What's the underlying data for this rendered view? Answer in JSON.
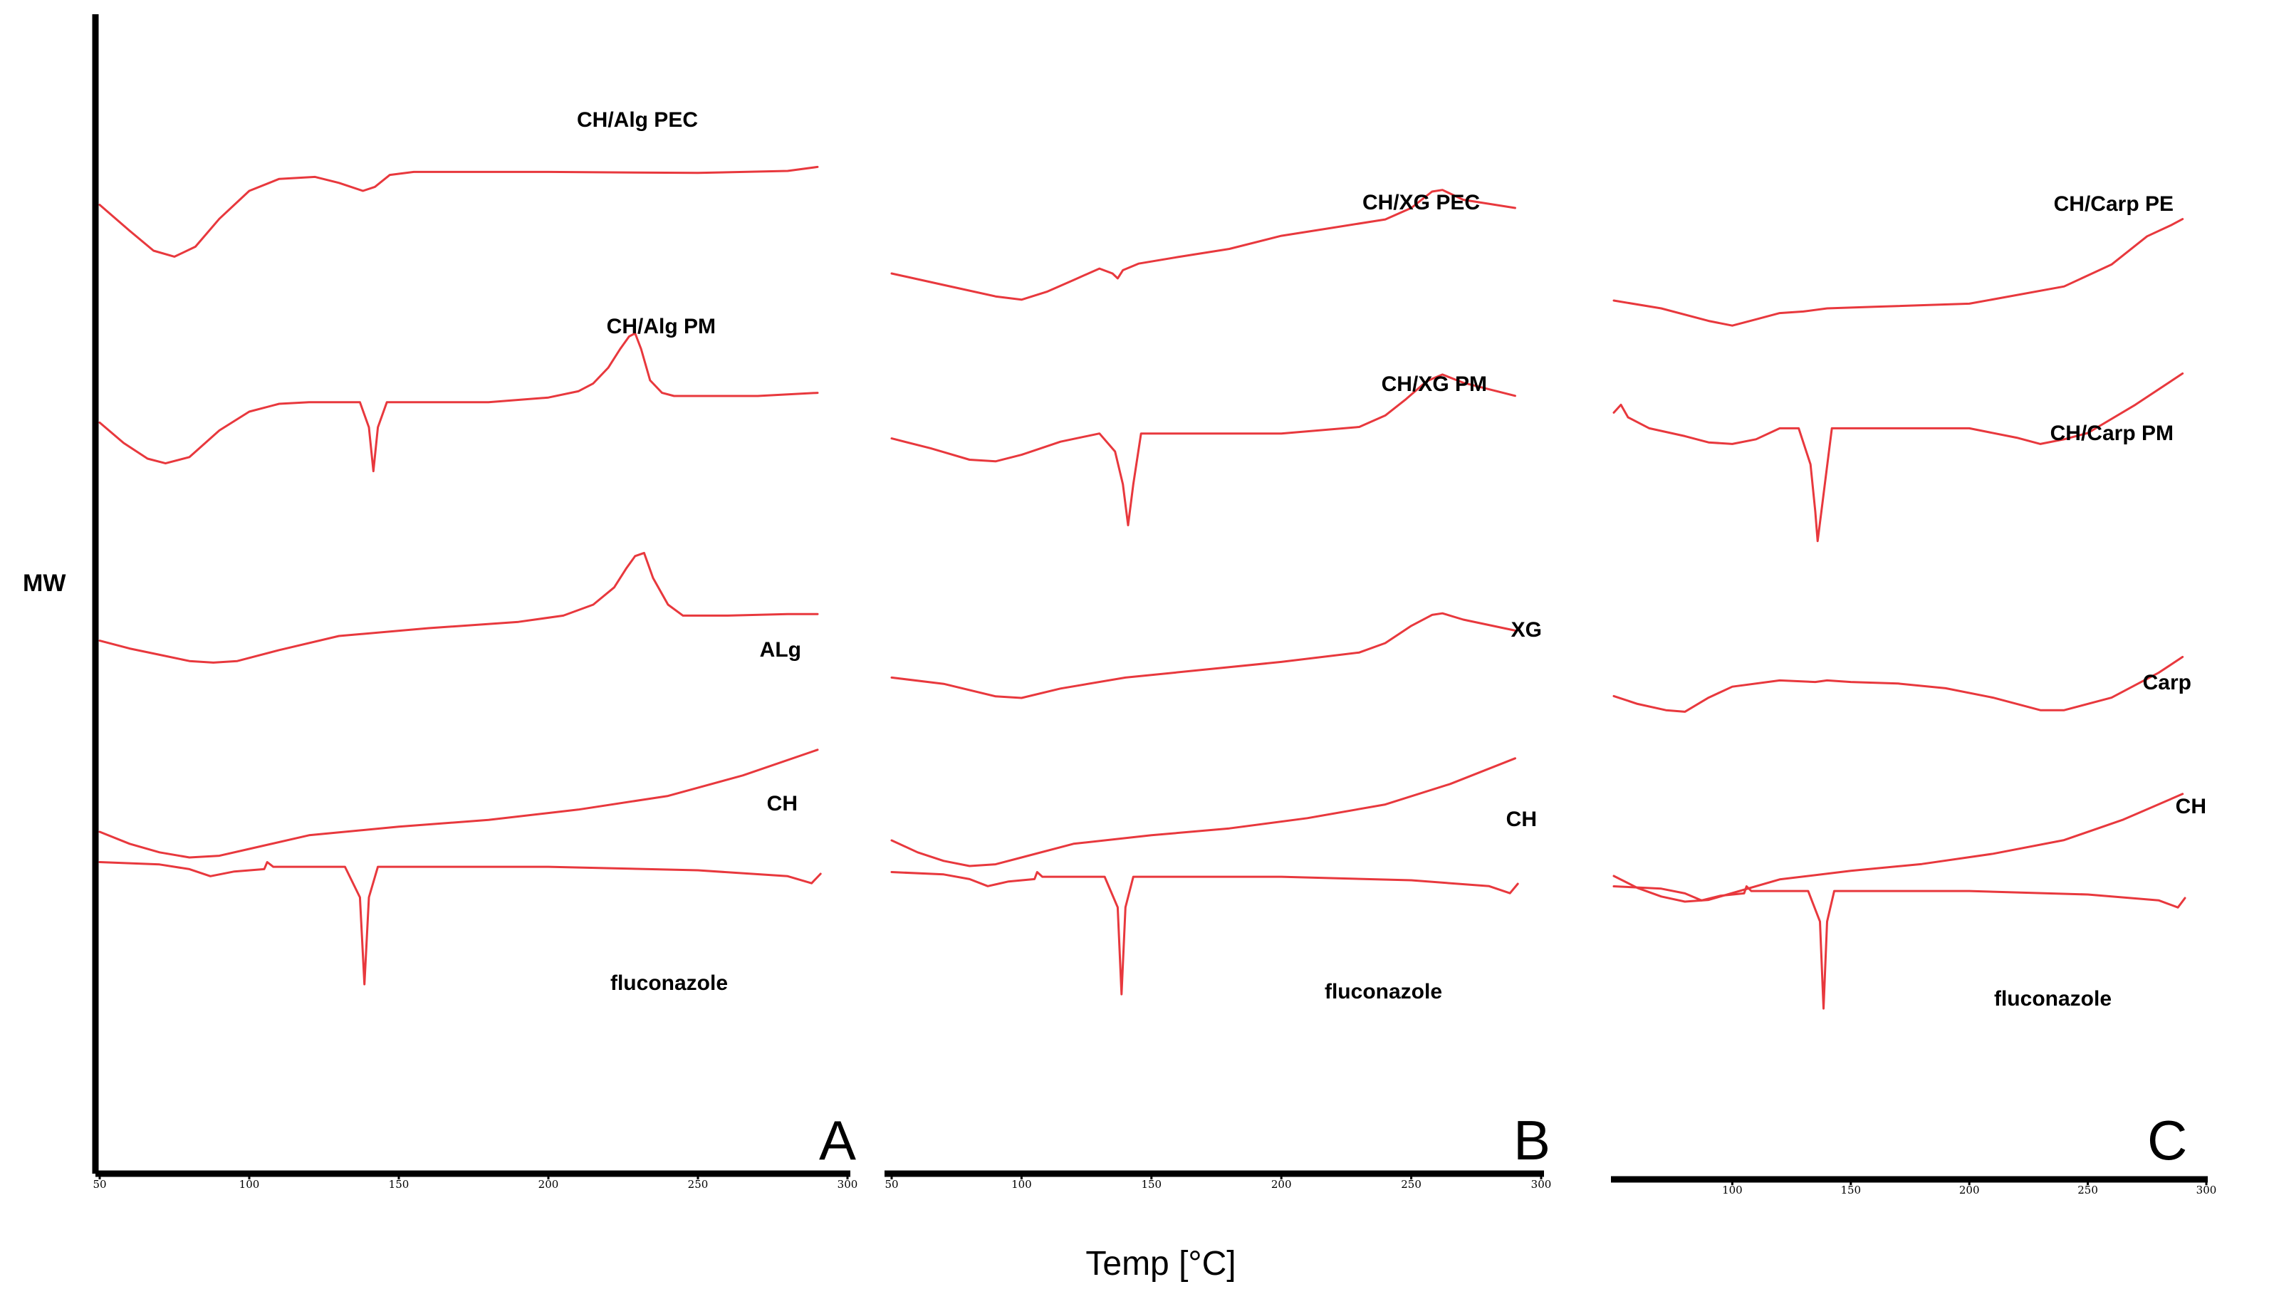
{
  "colors": {
    "curve": "#e8383d",
    "axis": "#000000",
    "background": "#ffffff"
  },
  "chart_data": {
    "type": "line",
    "title": "",
    "ylabel": "MW",
    "xlabel": "Temp [°C]",
    "xlim": [
      50,
      300
    ],
    "xticks": [
      "50",
      "100",
      "150",
      "200",
      "250",
      "300"
    ],
    "panels": [
      {
        "label": "A",
        "series": [
          {
            "name": "CH/Alg PEC",
            "x": [
              50,
              60,
              68,
              75,
              82,
              90,
              100,
              110,
              122,
              130,
              138,
              142,
              147,
              155,
              200,
              250,
              280,
              290
            ],
            "y": [
              3.3,
              2.0,
              1.0,
              0.7,
              1.2,
              2.6,
              4.0,
              4.6,
              4.7,
              4.4,
              4.0,
              4.2,
              4.8,
              4.95,
              4.95,
              4.9,
              5.0,
              5.2
            ]
          },
          {
            "name": "CH/Alg PM",
            "x": [
              50,
              58,
              66,
              72,
              80,
              90,
              100,
              110,
              120,
              130,
              137,
              140,
              141.5,
              143,
              146,
              150,
              180,
              200,
              210,
              215,
              220,
              224,
              227,
              229,
              231,
              234,
              238,
              242,
              250,
              270,
              290
            ],
            "y": [
              3.3,
              2.0,
              1.0,
              0.7,
              1.1,
              2.8,
              4.0,
              4.5,
              4.6,
              4.6,
              4.6,
              3.0,
              0.2,
              3.0,
              4.6,
              4.6,
              4.6,
              4.9,
              5.3,
              5.8,
              6.8,
              8.0,
              8.8,
              9.0,
              8.0,
              6.0,
              5.2,
              5.0,
              5.0,
              5.0,
              5.2
            ]
          },
          {
            "name": "ALg",
            "x": [
              50,
              60,
              70,
              80,
              88,
              96,
              110,
              130,
              160,
              190,
              205,
              215,
              222,
              226,
              229,
              232,
              235,
              240,
              245,
              260,
              280,
              290
            ],
            "y": [
              2.2,
              1.7,
              1.3,
              0.9,
              0.8,
              0.9,
              1.6,
              2.5,
              3.0,
              3.4,
              3.8,
              4.5,
              5.6,
              6.8,
              7.6,
              7.8,
              6.2,
              4.5,
              3.8,
              3.8,
              3.9,
              3.9
            ]
          },
          {
            "name": "CH",
            "x": [
              50,
              60,
              70,
              80,
              90,
              100,
              120,
              150,
              180,
              210,
              240,
              265,
              290
            ],
            "y": [
              2.5,
              1.8,
              1.3,
              1.0,
              1.1,
              1.5,
              2.3,
              2.8,
              3.2,
              3.8,
              4.6,
              5.8,
              7.3
            ]
          },
          {
            "name": "fluconazole",
            "x": [
              50,
              70,
              80,
              87,
              95,
              105,
              106,
              108,
              115,
              125,
              132,
              137,
              138.5,
              140,
              143,
              150,
              200,
              250,
              280,
              288,
              291
            ],
            "y": [
              3.5,
              3.4,
              3.2,
              2.9,
              3.1,
              3.2,
              3.5,
              3.3,
              3.3,
              3.3,
              3.3,
              2.0,
              -1.7,
              2.0,
              3.3,
              3.3,
              3.3,
              3.15,
              2.9,
              2.6,
              3.0
            ]
          }
        ]
      },
      {
        "label": "B",
        "series": [
          {
            "name": "CH/XG PEC",
            "x": [
              50,
              70,
              90,
              100,
              110,
              120,
              130,
              135,
              137,
              139,
              145,
              160,
              180,
              200,
              220,
              240,
              250,
              258,
              262,
              270,
              290
            ],
            "y": [
              2.0,
              1.3,
              0.6,
              0.4,
              0.9,
              1.6,
              2.3,
              2.0,
              1.7,
              2.2,
              2.6,
              3.0,
              3.5,
              4.3,
              4.8,
              5.3,
              6.0,
              7.0,
              7.1,
              6.5,
              6.0
            ]
          },
          {
            "name": "CH/XG PM",
            "x": [
              50,
              65,
              80,
              90,
              100,
              115,
              130,
              136,
              139,
              141,
              143,
              146,
              160,
              200,
              230,
              240,
              248,
              256,
              262,
              270,
              290
            ],
            "y": [
              2.8,
              2.2,
              1.5,
              1.4,
              1.8,
              2.6,
              3.1,
              2.0,
              0.0,
              -2.5,
              0.0,
              3.1,
              3.1,
              3.1,
              3.5,
              4.2,
              5.2,
              6.3,
              6.7,
              6.2,
              5.4
            ]
          },
          {
            "name": "XG",
            "x": [
              50,
              70,
              90,
              100,
              115,
              140,
              170,
              200,
              230,
              240,
              250,
              258,
              262,
              270,
              290
            ],
            "y": [
              1.3,
              0.9,
              0.1,
              0.0,
              0.6,
              1.3,
              1.8,
              2.3,
              2.9,
              3.5,
              4.6,
              5.3,
              5.4,
              5.0,
              4.3
            ]
          },
          {
            "name": "CH",
            "x": [
              50,
              60,
              70,
              80,
              90,
              100,
              120,
              150,
              180,
              210,
              240,
              265,
              290
            ],
            "y": [
              2.5,
              1.8,
              1.3,
              1.0,
              1.1,
              1.5,
              2.3,
              2.8,
              3.2,
              3.8,
              4.6,
              5.8,
              7.3
            ]
          },
          {
            "name": "fluconazole",
            "x": [
              50,
              70,
              80,
              87,
              95,
              105,
              106,
              108,
              115,
              125,
              132,
              137,
              138.5,
              140,
              143,
              150,
              200,
              250,
              280,
              288,
              291
            ],
            "y": [
              3.5,
              3.4,
              3.2,
              2.9,
              3.1,
              3.2,
              3.5,
              3.3,
              3.3,
              3.3,
              3.3,
              2.0,
              -1.7,
              2.0,
              3.3,
              3.3,
              3.3,
              3.15,
              2.9,
              2.6,
              3.0
            ]
          }
        ]
      },
      {
        "label": "C",
        "series": [
          {
            "name": "CH/Carp PE",
            "x": [
              50,
              70,
              90,
              100,
              110,
              120,
              130,
              140,
              160,
              200,
              240,
              260,
              275,
              285,
              290
            ],
            "y": [
              4.0,
              3.5,
              2.7,
              2.4,
              2.8,
              3.2,
              3.3,
              3.5,
              3.6,
              3.8,
              4.9,
              6.3,
              8.1,
              8.8,
              9.2
            ]
          },
          {
            "name": "CH/Carp PM",
            "x": [
              50,
              53,
              56,
              65,
              80,
              90,
              100,
              110,
              120,
              128,
              133,
              135,
              136,
              138,
              142,
              150,
              180,
              200,
              220,
              230,
              240,
              250,
              270,
              290
            ],
            "y": [
              6.3,
              6.8,
              6.0,
              5.3,
              4.8,
              4.4,
              4.3,
              4.6,
              5.3,
              5.3,
              3.0,
              0.0,
              -1.9,
              0.5,
              5.3,
              5.3,
              5.3,
              5.3,
              4.7,
              4.3,
              4.6,
              5.0,
              6.8,
              8.8
            ]
          },
          {
            "name": "Carp",
            "x": [
              50,
              60,
              72,
              80,
              90,
              100,
              120,
              135,
              140,
              150,
              170,
              190,
              210,
              230,
              240,
              260,
              280,
              290
            ],
            "y": [
              3.3,
              2.8,
              2.4,
              2.3,
              3.2,
              3.9,
              4.3,
              4.2,
              4.3,
              4.2,
              4.1,
              3.8,
              3.2,
              2.4,
              2.4,
              3.2,
              4.8,
              5.8
            ]
          },
          {
            "name": "CH",
            "x": [
              50,
              60,
              70,
              80,
              90,
              100,
              120,
              150,
              180,
              210,
              240,
              265,
              290
            ],
            "y": [
              2.5,
              1.8,
              1.3,
              1.0,
              1.1,
              1.5,
              2.3,
              2.8,
              3.2,
              3.8,
              4.6,
              5.8,
              7.3
            ]
          },
          {
            "name": "fluconazole",
            "x": [
              50,
              70,
              80,
              87,
              95,
              105,
              106,
              108,
              115,
              125,
              132,
              137,
              138.5,
              140,
              143,
              150,
              200,
              250,
              280,
              288,
              291
            ],
            "y": [
              3.5,
              3.4,
              3.2,
              2.9,
              3.1,
              3.2,
              3.5,
              3.3,
              3.3,
              3.3,
              3.3,
              2.0,
              -1.7,
              2.0,
              3.3,
              3.3,
              3.3,
              3.15,
              2.9,
              2.6,
              3.0
            ]
          }
        ]
      }
    ]
  }
}
